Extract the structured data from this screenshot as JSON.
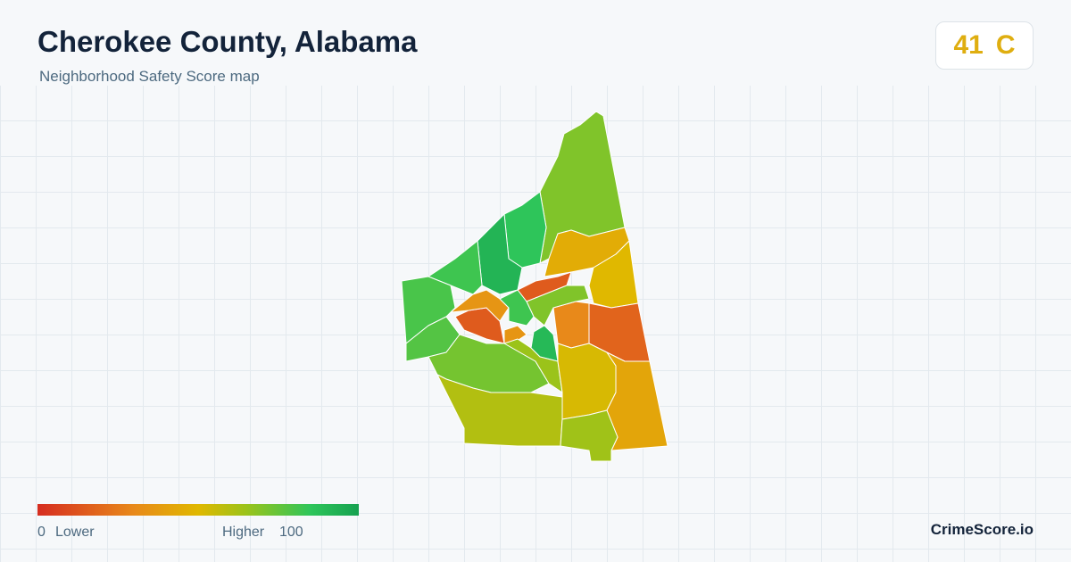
{
  "header": {
    "title": "Cherokee County, Alabama",
    "subtitle": "Neighborhood Safety Score map"
  },
  "score": {
    "value": 41,
    "grade": "C"
  },
  "legend": {
    "min": 0,
    "low_label": "Lower",
    "high_label": "Higher",
    "max": 100
  },
  "brand": "CrimeScore.io",
  "regions": [
    {
      "score": 70
    },
    {
      "score": 85
    },
    {
      "score": 92
    },
    {
      "score": 82
    },
    {
      "score": 80
    },
    {
      "score": 78
    },
    {
      "score": 45
    },
    {
      "score": 50
    },
    {
      "score": 18
    },
    {
      "score": 30
    },
    {
      "score": 15
    },
    {
      "score": 70
    },
    {
      "score": 15
    },
    {
      "score": 35
    },
    {
      "score": 82
    },
    {
      "score": 90
    },
    {
      "score": 35
    },
    {
      "score": 72
    },
    {
      "score": 65
    },
    {
      "score": 60
    },
    {
      "score": 52
    },
    {
      "score": 42
    },
    {
      "score": 64
    }
  ]
}
